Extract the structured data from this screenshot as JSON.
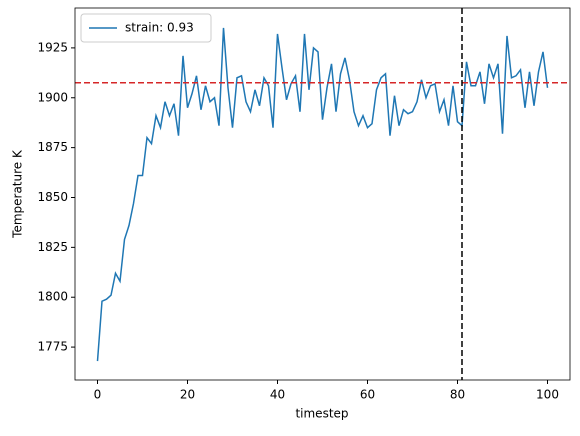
{
  "chart_data": {
    "type": "line",
    "xlabel": "timestep",
    "ylabel": "Temperature K",
    "x": [
      0,
      1,
      2,
      3,
      4,
      5,
      6,
      7,
      8,
      9,
      10,
      11,
      12,
      13,
      14,
      15,
      16,
      17,
      18,
      19,
      20,
      21,
      22,
      23,
      24,
      25,
      26,
      27,
      28,
      29,
      30,
      31,
      32,
      33,
      34,
      35,
      36,
      37,
      38,
      39,
      40,
      41,
      42,
      43,
      44,
      45,
      46,
      47,
      48,
      49,
      50,
      51,
      52,
      53,
      54,
      55,
      56,
      57,
      58,
      59,
      60,
      61,
      62,
      63,
      64,
      65,
      66,
      67,
      68,
      69,
      70,
      71,
      72,
      73,
      74,
      75,
      76,
      77,
      78,
      79,
      80,
      81,
      82,
      83,
      84,
      85,
      86,
      87,
      88,
      89,
      90,
      91,
      92,
      93,
      94,
      95,
      96,
      97,
      98,
      99,
      100
    ],
    "series": [
      {
        "name": "strain: 0.93",
        "color": "#1f77b4",
        "values": [
          1768,
          1798,
          1799,
          1801,
          1812,
          1808,
          1829,
          1836,
          1847,
          1861,
          1861,
          1880,
          1877,
          1891,
          1885,
          1898,
          1891,
          1897,
          1881,
          1921,
          1895,
          1902,
          1911,
          1894,
          1906,
          1898,
          1900,
          1886,
          1935,
          1905,
          1885,
          1910,
          1911,
          1898,
          1893,
          1904,
          1896,
          1910,
          1906,
          1885,
          1932,
          1915,
          1899,
          1907,
          1911,
          1893,
          1932,
          1904,
          1925,
          1923,
          1889,
          1905,
          1917,
          1893,
          1912,
          1920,
          1909,
          1893,
          1886,
          1891,
          1885,
          1887,
          1904,
          1910,
          1912,
          1881,
          1901,
          1886,
          1894,
          1892,
          1893,
          1898,
          1909,
          1900,
          1906,
          1907,
          1893,
          1899,
          1886,
          1906,
          1888,
          1886,
          1918,
          1906,
          1906,
          1913,
          1897,
          1917,
          1910,
          1917,
          1882,
          1931,
          1910,
          1911,
          1914,
          1895,
          1913,
          1896,
          1913,
          1923,
          1905
        ]
      }
    ],
    "hline": {
      "value": 1907.5,
      "color": "#d62728"
    },
    "vline": {
      "value": 81,
      "color": "#000000"
    },
    "xlim": [
      -5,
      105
    ],
    "ylim": [
      1758.5,
      1945
    ],
    "xticks": [
      0,
      20,
      40,
      60,
      80,
      100
    ],
    "yticks": [
      1775,
      1800,
      1825,
      1850,
      1875,
      1900,
      1925
    ],
    "legend": "upper left"
  }
}
